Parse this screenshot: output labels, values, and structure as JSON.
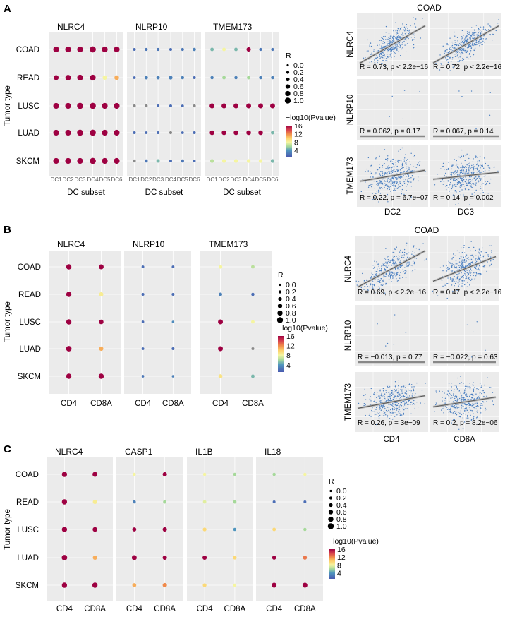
{
  "chart_data": [
    {
      "panel": "A",
      "type": "dot",
      "ylabel": "Tumor type",
      "xlabel": "DC subset",
      "rows": [
        "COAD",
        "READ",
        "LUSC",
        "LUAD",
        "SKCM"
      ],
      "cols": [
        "DC1",
        "DC2",
        "DC3",
        "DC4",
        "DC5",
        "DC6"
      ],
      "genes": [
        {
          "name": "NLRC4",
          "values": [
            [
              [
                0.6,
                16
              ],
              [
                0.6,
                16
              ],
              [
                0.6,
                16
              ],
              [
                0.65,
                16
              ],
              [
                0.6,
                16
              ],
              [
                0.6,
                16
              ]
            ],
            [
              [
                0.45,
                16
              ],
              [
                0.55,
                16
              ],
              [
                0.6,
                16
              ],
              [
                0.6,
                16
              ],
              [
                0.35,
                8
              ],
              [
                0.4,
                11
              ]
            ],
            [
              [
                0.6,
                16
              ],
              [
                0.6,
                16
              ],
              [
                0.65,
                16
              ],
              [
                0.65,
                16
              ],
              [
                0.6,
                16
              ],
              [
                0.6,
                16
              ]
            ],
            [
              [
                0.6,
                16
              ],
              [
                0.6,
                16
              ],
              [
                0.65,
                16
              ],
              [
                0.65,
                16
              ],
              [
                0.6,
                16
              ],
              [
                0.6,
                16
              ]
            ],
            [
              [
                0.6,
                16
              ],
              [
                0.6,
                16
              ],
              [
                0.6,
                16
              ],
              [
                0.65,
                16
              ],
              [
                0.6,
                16
              ],
              [
                0.6,
                16
              ]
            ]
          ]
        },
        {
          "name": "NLRP10",
          "values": [
            [
              [
                0.1,
                2
              ],
              [
                0.12,
                2.5
              ],
              [
                0.12,
                2.5
              ],
              [
                0.1,
                2
              ],
              [
                0.12,
                2.5
              ],
              [
                0.15,
                3
              ]
            ],
            [
              [
                0.08,
                2
              ],
              [
                0.2,
                3
              ],
              [
                0.2,
                3
              ],
              [
                0.25,
                3
              ],
              [
                0.15,
                3
              ],
              [
                0.1,
                2
              ]
            ],
            [
              [
                0.12,
                null
              ],
              [
                0.12,
                null
              ],
              [
                0.1,
                2
              ],
              [
                0.1,
                2
              ],
              [
                0.08,
                2
              ],
              [
                0.12,
                null
              ]
            ],
            [
              [
                0.1,
                2
              ],
              [
                0.08,
                2
              ],
              [
                0.1,
                2
              ],
              [
                0.12,
                null
              ],
              [
                0.08,
                2
              ],
              [
                0.1,
                2
              ]
            ],
            [
              [
                0.12,
                null
              ],
              [
                0.15,
                2.5
              ],
              [
                0.2,
                5
              ],
              [
                0.1,
                2
              ],
              [
                0.15,
                2.5
              ],
              [
                0.08,
                2
              ]
            ]
          ]
        },
        {
          "name": "TMEM173",
          "values": [
            [
              [
                0.2,
                5
              ],
              [
                0.2,
                8
              ],
              [
                0.2,
                5
              ],
              [
                0.35,
                16
              ],
              [
                0.12,
                2.5
              ],
              [
                0.12,
                2.5
              ]
            ],
            [
              [
                0.15,
                3
              ],
              [
                0.2,
                6
              ],
              [
                0.15,
                3
              ],
              [
                0.2,
                6
              ],
              [
                0.15,
                3
              ],
              [
                0.15,
                3
              ]
            ],
            [
              [
                0.45,
                16
              ],
              [
                0.45,
                16
              ],
              [
                0.45,
                16
              ],
              [
                0.45,
                16
              ],
              [
                0.45,
                16
              ],
              [
                0.45,
                16
              ]
            ],
            [
              [
                0.4,
                16
              ],
              [
                0.4,
                16
              ],
              [
                0.4,
                16
              ],
              [
                0.4,
                16
              ],
              [
                0.4,
                16
              ],
              [
                0.2,
                5
              ]
            ],
            [
              [
                0.25,
                6.5
              ],
              [
                0.25,
                8
              ],
              [
                0.25,
                8
              ],
              [
                0.25,
                8
              ],
              [
                0.25,
                8
              ],
              [
                0.25,
                5
              ]
            ]
          ]
        }
      ],
      "legend": {
        "size_title": "R",
        "size_labels": [
          "0.0",
          "0.2",
          "0.4",
          "0.6",
          "0.8",
          "1.0"
        ],
        "color_title": "−log10(Pvalue)",
        "color_labels": [
          "16",
          "12",
          "8",
          "4"
        ]
      }
    },
    {
      "panel": "B",
      "type": "dot",
      "ylabel": "Tumor type",
      "xlabel": "",
      "rows": [
        "COAD",
        "READ",
        "LUSC",
        "LUAD",
        "SKCM"
      ],
      "cols": [
        "CD4",
        "CD8A"
      ],
      "genes": [
        {
          "name": "NLRC4",
          "values": [
            [
              [
                0.5,
                16
              ],
              [
                0.45,
                16
              ]
            ],
            [
              [
                0.5,
                16
              ],
              [
                0.35,
                8.5
              ]
            ],
            [
              [
                0.5,
                16
              ],
              [
                0.4,
                16
              ]
            ],
            [
              [
                0.55,
                16
              ],
              [
                0.35,
                11
              ]
            ],
            [
              [
                0.5,
                16
              ],
              [
                0.5,
                16
              ]
            ]
          ]
        },
        {
          "name": "NLRP10",
          "values": [
            [
              [
                0.08,
                2
              ],
              [
                0.08,
                2
              ]
            ],
            [
              [
                0.1,
                2
              ],
              [
                0.1,
                2
              ]
            ],
            [
              [
                0.06,
                2
              ],
              [
                0.05,
                3.5
              ]
            ],
            [
              [
                0.08,
                2
              ],
              [
                0.1,
                2
              ]
            ],
            [
              [
                0.06,
                2.5
              ],
              [
                0.05,
                3
              ]
            ]
          ]
        },
        {
          "name": "TMEM173",
          "values": [
            [
              [
                0.25,
                8
              ],
              [
                0.2,
                6.5
              ]
            ],
            [
              [
                0.2,
                3
              ],
              [
                0.15,
                2
              ]
            ],
            [
              [
                0.45,
                16
              ],
              [
                0.2,
                8
              ]
            ],
            [
              [
                0.45,
                16
              ],
              [
                0.1,
                null
              ]
            ],
            [
              [
                0.3,
                9
              ],
              [
                0.2,
                5
              ]
            ]
          ]
        }
      ],
      "legend": {
        "size_title": "R",
        "size_labels": [
          "0.0",
          "0.2",
          "0.4",
          "0.6",
          "0.8",
          "1.0"
        ],
        "color_title": "−log10(Pvalue)",
        "color_labels": [
          "16",
          "12",
          "8",
          "4"
        ]
      }
    },
    {
      "panel": "C",
      "type": "dot",
      "ylabel": "Tumor type",
      "xlabel": "",
      "rows": [
        "COAD",
        "READ",
        "LUSC",
        "LUAD",
        "SKCM"
      ],
      "cols": [
        "CD4",
        "CD8A"
      ],
      "genes": [
        {
          "name": "NLRC4",
          "values": [
            [
              [
                0.5,
                16
              ],
              [
                0.45,
                16
              ]
            ],
            [
              [
                0.5,
                16
              ],
              [
                0.35,
                8.5
              ]
            ],
            [
              [
                0.5,
                16
              ],
              [
                0.4,
                16
              ]
            ],
            [
              [
                0.55,
                16
              ],
              [
                0.35,
                11
              ]
            ],
            [
              [
                0.5,
                16
              ],
              [
                0.5,
                16
              ]
            ]
          ]
        },
        {
          "name": "CASP1",
          "values": [
            [
              [
                0.15,
                8
              ],
              [
                0.35,
                16
              ]
            ],
            [
              [
                0.15,
                3
              ],
              [
                0.2,
                6
              ]
            ],
            [
              [
                0.3,
                16
              ],
              [
                0.35,
                16
              ]
            ],
            [
              [
                0.45,
                16
              ],
              [
                0.35,
                16
              ]
            ],
            [
              [
                0.3,
                11
              ],
              [
                0.35,
                12
              ]
            ]
          ]
        },
        {
          "name": "IL1B",
          "values": [
            [
              [
                0.15,
                8
              ],
              [
                0.15,
                6
              ]
            ],
            [
              [
                0.2,
                7.5
              ],
              [
                0.2,
                6
              ]
            ],
            [
              [
                0.25,
                9.5
              ],
              [
                0.15,
                4
              ]
            ],
            [
              [
                0.35,
                16
              ],
              [
                0.25,
                9.5
              ]
            ],
            [
              [
                0.25,
                9.5
              ],
              [
                0.15,
                8
              ]
            ]
          ]
        },
        {
          "name": "IL18",
          "values": [
            [
              [
                0.15,
                6
              ],
              [
                0.15,
                8
              ]
            ],
            [
              [
                0.1,
                2
              ],
              [
                0.1,
                2
              ]
            ],
            [
              [
                0.2,
                9.5
              ],
              [
                0.15,
                6
              ]
            ],
            [
              [
                0.3,
                16
              ],
              [
                0.3,
                12.5
              ]
            ],
            [
              [
                0.45,
                16
              ],
              [
                0.45,
                16
              ]
            ]
          ]
        }
      ],
      "legend": {
        "size_title": "R",
        "size_labels": [
          "0.0",
          "0.2",
          "0.4",
          "0.6",
          "0.8",
          "1.0"
        ],
        "color_title": "−log10(Pvalue)",
        "color_labels": [
          "16",
          "12",
          "8",
          "4"
        ]
      }
    },
    {
      "panel": "A-scatter",
      "type": "scatter",
      "title": "COAD",
      "rows": [
        "NLRC4",
        "NLRP10",
        "TMEM173"
      ],
      "cols": [
        "DC2",
        "DC3"
      ],
      "cells": [
        [
          {
            "R": 0.73,
            "label": "R = 0.73, p < 2.2e−16"
          },
          {
            "R": 0.72,
            "label": "R = 0.72, p < 2.2e−16"
          }
        ],
        [
          {
            "R": 0.062,
            "label": "R = 0.062, p = 0.17"
          },
          {
            "R": 0.067,
            "label": "R = 0.067, p = 0.14"
          }
        ],
        [
          {
            "R": 0.22,
            "label": "R = 0.22, p = 6.7e−07"
          },
          {
            "R": 0.14,
            "label": "R = 0.14, p = 0.002"
          }
        ]
      ]
    },
    {
      "panel": "B-scatter",
      "type": "scatter",
      "title": "COAD",
      "rows": [
        "NLRC4",
        "NLRP10",
        "TMEM173"
      ],
      "cols": [
        "CD4",
        "CD8A"
      ],
      "cells": [
        [
          {
            "R": 0.69,
            "label": "R = 0.69, p < 2.2e−16"
          },
          {
            "R": 0.47,
            "label": "R = 0.47, p < 2.2e−16"
          }
        ],
        [
          {
            "R": -0.013,
            "label": "R = −0.013, p = 0.77"
          },
          {
            "R": -0.022,
            "label": "R = −0.022, p = 0.63"
          }
        ],
        [
          {
            "R": 0.26,
            "label": "R = 0.26, p = 3e−09"
          },
          {
            "R": 0.2,
            "label": "R = 0.2, p = 8.2e−06"
          }
        ]
      ]
    }
  ],
  "colors": {
    "panel_bg": "#ebebeb",
    "na": "#8a8a8a",
    "point": "#4a7fc1",
    "line": "#555555"
  }
}
